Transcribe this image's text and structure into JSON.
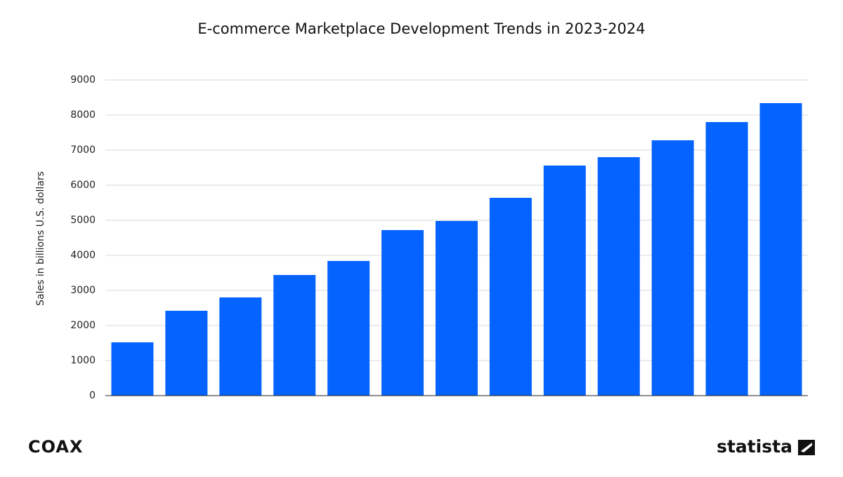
{
  "chart_data": {
    "type": "bar",
    "title": "E-commerce Marketplace Development Trends in 2023-2024",
    "y_label": "Sales in billions U.S. dollars",
    "categories": [
      null,
      null,
      null,
      null,
      null,
      null,
      null,
      null,
      null,
      null,
      null,
      null,
      null
    ],
    "values": [
      1520,
      2420,
      2800,
      3440,
      3840,
      4720,
      4980,
      5640,
      6560,
      6800,
      7280,
      7800,
      8340
    ],
    "color": "#0564ff",
    "ylim": [
      0,
      9000
    ],
    "yticks": [
      0,
      1000,
      2000,
      3000,
      4000,
      5000,
      6000,
      7000,
      8000,
      9000
    ],
    "grid": true
  },
  "branding": {
    "left": "COAX",
    "right": "statista"
  }
}
